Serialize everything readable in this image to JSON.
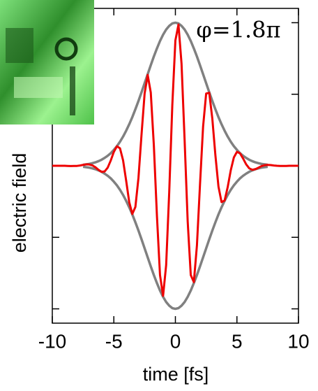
{
  "chart_data": {
    "type": "line",
    "annotation": "φ=1.8π",
    "xlabel": "time [fs]",
    "ylabel": "electric field",
    "xlim": [
      -10,
      10
    ],
    "xticks": [
      -10,
      -5,
      0,
      5,
      10
    ],
    "ylim": [
      -1.1,
      1.1
    ],
    "yticks": [
      -1,
      -0.5,
      0,
      0.5,
      1
    ],
    "x": [
      -10,
      -9.75,
      -9.5,
      -9.25,
      -9,
      -8.75,
      -8.5,
      -8.25,
      -8,
      -7.75,
      -7.5,
      -7.25,
      -7,
      -6.75,
      -6.5,
      -6.25,
      -6,
      -5.75,
      -5.5,
      -5.25,
      -5,
      -4.75,
      -4.5,
      -4.25,
      -4,
      -3.75,
      -3.5,
      -3.25,
      -3,
      -2.75,
      -2.5,
      -2.25,
      -2,
      -1.75,
      -1.5,
      -1.25,
      -1,
      -0.75,
      -0.5,
      -0.25,
      0,
      0.25,
      0.5,
      0.75,
      1,
      1.25,
      1.5,
      1.75,
      2,
      2.25,
      2.5,
      2.75,
      3,
      3.25,
      3.5,
      3.75,
      4,
      4.25,
      4.5,
      4.75,
      5,
      5.25,
      5.5,
      5.75,
      6,
      6.25,
      6.5,
      6.75,
      7,
      7.25,
      7.5,
      7.75,
      8,
      8.25,
      8.5,
      8.75,
      9,
      9.25,
      9.5,
      9.75,
      10
    ],
    "series": [
      {
        "color": "#808080",
        "values": [
          null,
          null,
          null,
          null,
          null,
          null,
          null,
          null,
          null,
          null,
          0.007,
          0.01,
          0.013,
          0.018,
          0.024,
          0.032,
          0.042,
          0.055,
          0.07,
          0.088,
          0.111,
          0.137,
          0.168,
          0.204,
          0.245,
          0.29,
          0.34,
          0.395,
          0.453,
          0.514,
          0.577,
          0.64,
          0.703,
          0.764,
          0.82,
          0.872,
          0.916,
          0.952,
          0.978,
          0.995,
          1,
          0.995,
          0.978,
          0.952,
          0.916,
          0.872,
          0.82,
          0.764,
          0.703,
          0.64,
          0.577,
          0.514,
          0.453,
          0.395,
          0.34,
          0.29,
          0.245,
          0.204,
          0.168,
          0.137,
          0.111,
          0.088,
          0.07,
          0.055,
          0.042,
          0.032,
          0.024,
          0.018,
          0.013,
          0.01,
          0.007,
          null,
          null,
          null,
          null,
          null,
          null,
          null,
          null,
          null,
          null
        ]
      },
      {
        "color": "#808080",
        "values": [
          null,
          null,
          null,
          null,
          null,
          null,
          null,
          null,
          null,
          null,
          -0.007,
          -0.01,
          -0.013,
          -0.018,
          -0.024,
          -0.032,
          -0.042,
          -0.055,
          -0.07,
          -0.088,
          -0.111,
          -0.137,
          -0.168,
          -0.204,
          -0.245,
          -0.29,
          -0.34,
          -0.395,
          -0.453,
          -0.514,
          -0.577,
          -0.64,
          -0.703,
          -0.764,
          -0.82,
          -0.872,
          -0.916,
          -0.952,
          -0.978,
          -0.995,
          -1,
          -0.995,
          -0.978,
          -0.952,
          -0.916,
          -0.872,
          -0.82,
          -0.764,
          -0.703,
          -0.64,
          -0.577,
          -0.514,
          -0.453,
          -0.395,
          -0.34,
          -0.29,
          -0.245,
          -0.204,
          -0.168,
          -0.137,
          -0.111,
          -0.088,
          -0.07,
          -0.055,
          -0.042,
          -0.032,
          -0.024,
          -0.018,
          -0.013,
          -0.01,
          -0.007,
          null,
          null,
          null,
          null,
          null,
          null,
          null,
          null,
          null,
          null
        ]
      },
      {
        "color": "#ee0000",
        "values": [
          0,
          0,
          0,
          0,
          0,
          -0.001,
          -0.002,
          -0.001,
          -0.001,
          0.002,
          0.006,
          0.01,
          0.009,
          0.003,
          -0.01,
          -0.028,
          -0.042,
          -0.04,
          -0.013,
          0.037,
          0.097,
          0.136,
          0.122,
          0.038,
          -0.104,
          -0.254,
          -0.337,
          -0.288,
          -0.085,
          0.219,
          0.505,
          0.635,
          0.512,
          0.143,
          -0.349,
          -0.764,
          -0.909,
          -0.694,
          -0.183,
          0.424,
          0.876,
          0.987,
          0.713,
          0.178,
          -0.39,
          -0.764,
          -0.813,
          -0.557,
          -0.131,
          0.273,
          0.505,
          0.51,
          0.33,
          0.074,
          -0.145,
          -0.254,
          -0.243,
          -0.149,
          -0.031,
          0.058,
          0.097,
          0.087,
          0.051,
          0.01,
          -0.018,
          -0.028,
          -0.024,
          -0.013,
          -0.002,
          0.004,
          0.006,
          0.005,
          0.002,
          0,
          -0.001,
          -0.001,
          -0.001,
          0,
          0,
          0,
          0
        ]
      }
    ]
  }
}
